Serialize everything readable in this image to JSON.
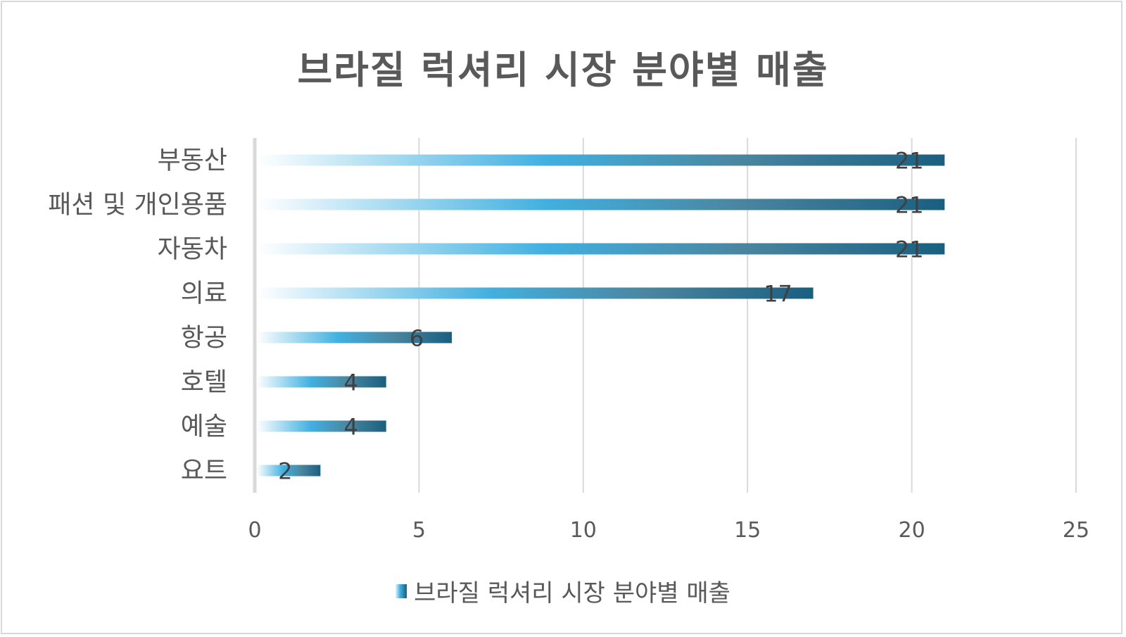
{
  "chart_data": {
    "type": "bar",
    "orientation": "horizontal",
    "title": "브라질 럭셔리 시장 분야별 매출",
    "categories": [
      "부동산",
      "패션 및 개인용품",
      "자동차",
      "의료",
      "항공",
      "호텔",
      "예술",
      "요트"
    ],
    "series": [
      {
        "name": "브라질 럭셔리 시장 분야별 매출",
        "values": [
          21,
          21,
          21,
          17,
          6,
          4,
          4,
          2
        ]
      }
    ],
    "xlim": [
      0,
      25
    ],
    "xticks": [
      "0",
      "5",
      "10",
      "15",
      "20",
      "25"
    ],
    "grid": true,
    "legend": "bottom",
    "data_labels": true,
    "colors": {
      "gradient_start": "#ffffff",
      "gradient_mid": "#41b0e0",
      "gradient_end": "#1a5f80",
      "text": "#595959",
      "grid": "#d9d9d9"
    }
  }
}
